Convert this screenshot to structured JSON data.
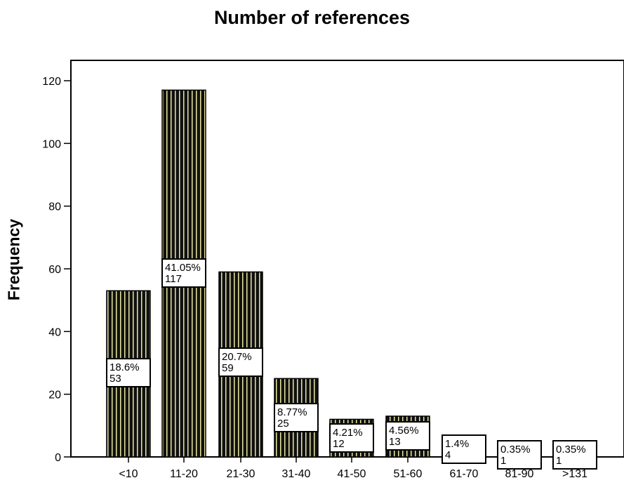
{
  "chart_data": {
    "type": "bar",
    "title": "Number of references",
    "xlabel": "",
    "ylabel": "Frequency",
    "ylim": [
      0,
      120
    ],
    "y_ticks": [
      0,
      20,
      40,
      60,
      80,
      100,
      120
    ],
    "categories": [
      "<10",
      "11-20",
      "21-30",
      "31-40",
      "41-50",
      "51-60",
      "61-70",
      "81-90",
      ">131"
    ],
    "values": [
      53,
      117,
      59,
      25,
      12,
      13,
      4,
      1,
      1
    ],
    "percent_labels": [
      "18.6%",
      "41.05%",
      "20.7%",
      "8.77%",
      "4.21%",
      "4.56%",
      "1.4%",
      "0.35%",
      "0.35%"
    ],
    "grid": false,
    "legend": "none",
    "colors": {
      "bar_stripe_dark": "#111111",
      "bar_stripe_light": "#e8e6a0"
    }
  }
}
